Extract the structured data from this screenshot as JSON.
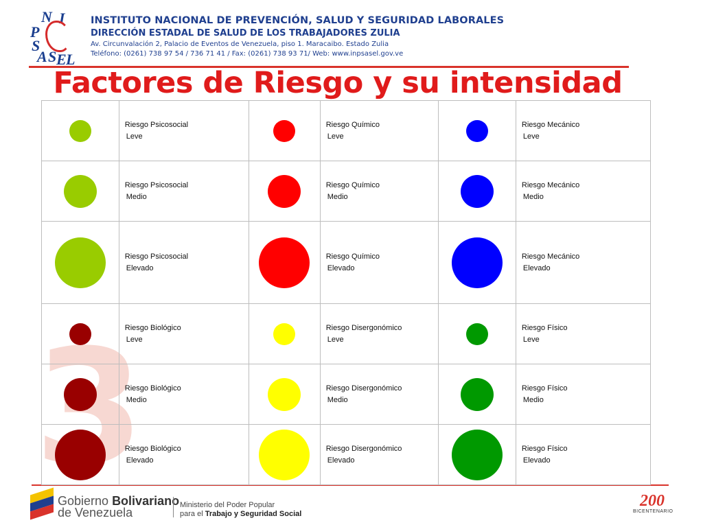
{
  "header": {
    "logo_letters": [
      "N",
      "I",
      "P",
      "S",
      "A",
      "S",
      "E",
      "L"
    ],
    "institute": "INSTITUTO NACIONAL DE PREVENCIÓN, SALUD Y SEGURIDAD LABORALES",
    "direction": "DIRECCIÓN ESTADAL DE SALUD DE LOS TRABAJADORES ZULIA",
    "address": "Av. Circunvalación 2, Palacio de  Eventos de Venezuela, piso 1. Maracaibo. Estado Zulia",
    "contact": "Teléfono: (0261) 738 97 54 / 736 71 41 / Fax: (0261) 738 93 71/ Web: www.inpsasel.gov.ve"
  },
  "title": "Factores de Riesgo y su intensidad",
  "watermark": "3",
  "colors": {
    "accent_red": "#d9332b",
    "title_red": "#e01b1b",
    "brand_blue": "#1f3f8f"
  },
  "rows": [
    {
      "cells": [
        {
          "risk": "Riesgo Psicosocial",
          "level": "Leve",
          "color": "#99cc00",
          "intensity": "leve"
        },
        {
          "risk": "Riesgo Químico",
          "level": "Leve",
          "color": "#ff0000",
          "intensity": "leve"
        },
        {
          "risk": "Riesgo Mecánico",
          "level": "Leve",
          "color": "#0000ff",
          "intensity": "leve"
        }
      ]
    },
    {
      "cells": [
        {
          "risk": "Riesgo Psicosocial",
          "level": "Medio",
          "color": "#99cc00",
          "intensity": "medio"
        },
        {
          "risk": "Riesgo Químico",
          "level": "Medio",
          "color": "#ff0000",
          "intensity": "medio"
        },
        {
          "risk": "Riesgo Mecánico",
          "level": "Medio",
          "color": "#0000ff",
          "intensity": "medio"
        }
      ]
    },
    {
      "cells": [
        {
          "risk": "Riesgo Psicosocial",
          "level": "Elevado",
          "color": "#99cc00",
          "intensity": "elevado"
        },
        {
          "risk": "Riesgo Químico",
          "level": "Elevado",
          "color": "#ff0000",
          "intensity": "elevado"
        },
        {
          "risk": "Riesgo Mecánico",
          "level": "Elevado",
          "color": "#0000ff",
          "intensity": "elevado"
        }
      ]
    },
    {
      "cells": [
        {
          "risk": "Riesgo Biológico",
          "level": "Leve",
          "color": "#990000",
          "intensity": "leve"
        },
        {
          "risk": "Riesgo Disergonómico",
          "level": "Leve",
          "color": "#ffff00",
          "intensity": "leve"
        },
        {
          "risk": "Riesgo Físico",
          "level": "Leve",
          "color": "#009900",
          "intensity": "leve"
        }
      ]
    },
    {
      "cells": [
        {
          "risk": "Riesgo Biológico",
          "level": "Medio",
          "color": "#990000",
          "intensity": "medio"
        },
        {
          "risk": "Riesgo Disergonómico",
          "level": "Medio",
          "color": "#ffff00",
          "intensity": "medio"
        },
        {
          "risk": "Riesgo Físico",
          "level": "Medio",
          "color": "#009900",
          "intensity": "medio"
        }
      ]
    },
    {
      "cells": [
        {
          "risk": "Riesgo Biológico",
          "level": "Elevado",
          "color": "#990000",
          "intensity": "elevado"
        },
        {
          "risk": "Riesgo Disergonómico",
          "level": "Elevado",
          "color": "#ffff00",
          "intensity": "elevado"
        },
        {
          "risk": "Riesgo Físico",
          "level": "Elevado",
          "color": "#009900",
          "intensity": "elevado"
        }
      ]
    }
  ],
  "footer": {
    "gov_line1_a": "Gobierno ",
    "gov_line1_b": "Bolivariano",
    "gov_line2": "de Venezuela",
    "ministry_line1": "Ministerio del Poder Popular",
    "ministry_line2_a": "para el ",
    "ministry_line2_b": "Trabajo y Seguridad Social",
    "bicentennial_num_a": "2",
    "bicentennial_num_b": "00",
    "bicentennial_label": "BICENTENARIO",
    "flag_colors": [
      "#f4c300",
      "#1f3f8f",
      "#d9332b"
    ]
  }
}
